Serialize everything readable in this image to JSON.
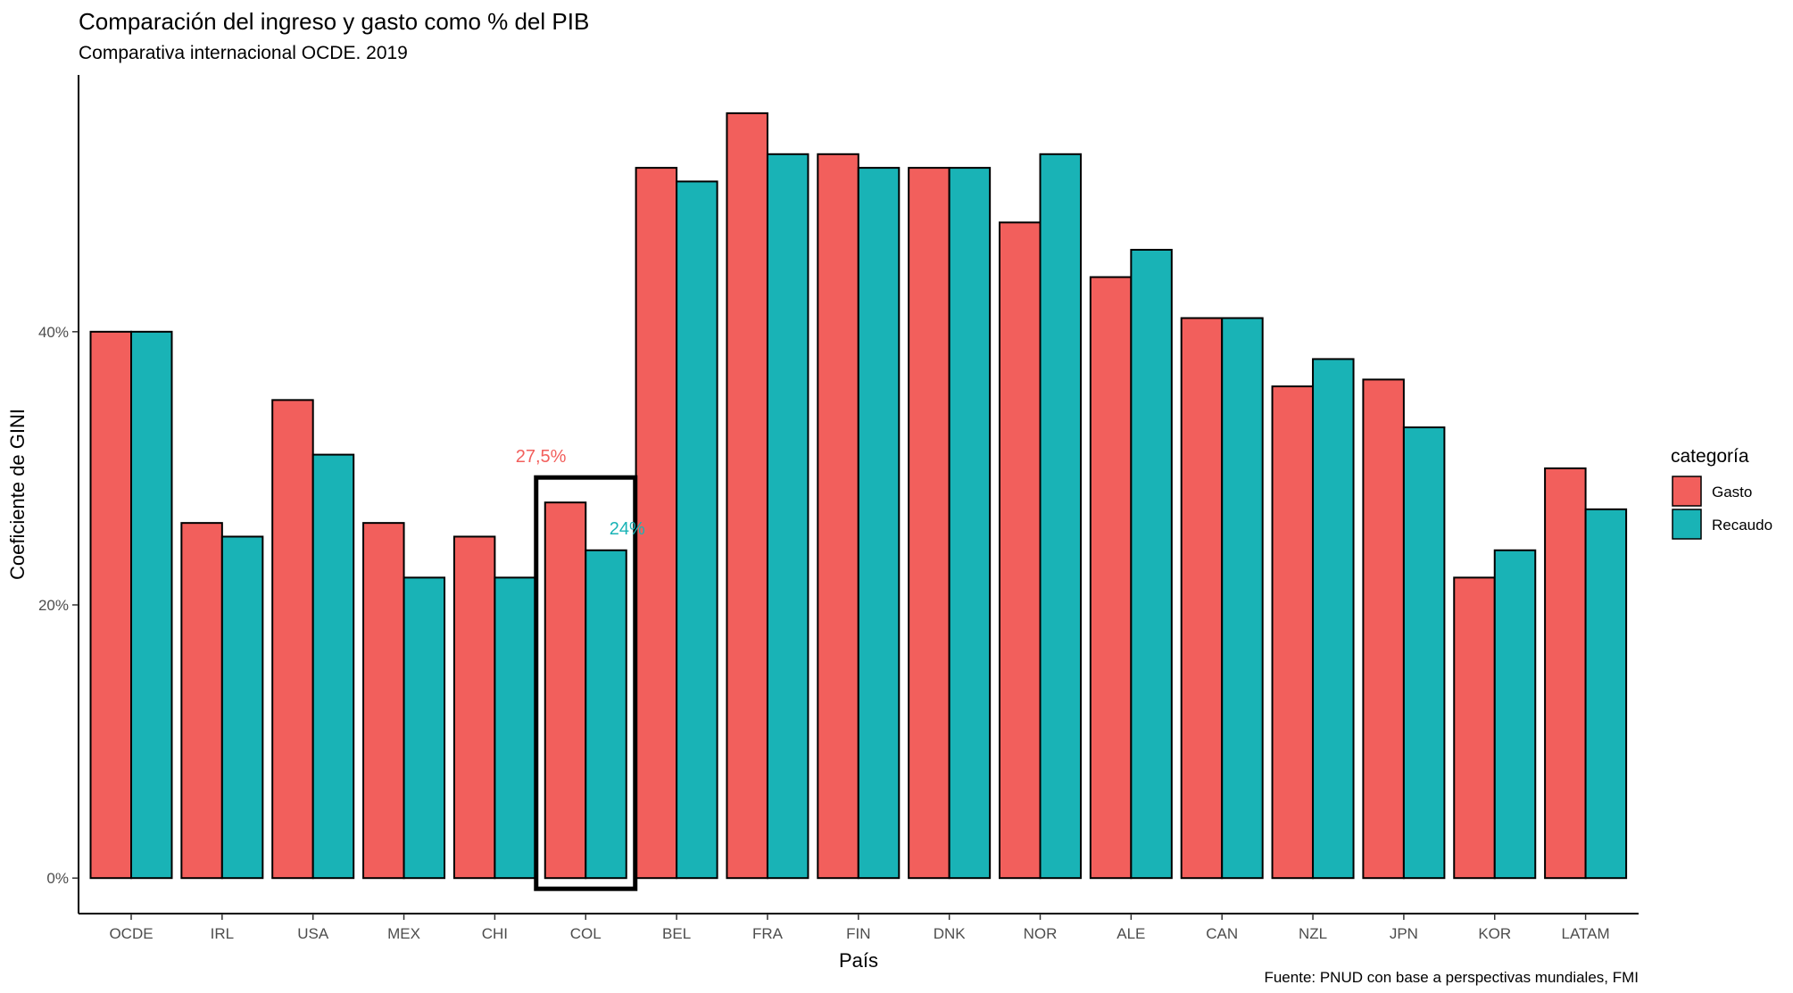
{
  "chart_data": {
    "type": "bar",
    "title": "Comparación del ingreso y gasto como % del PIB",
    "subtitle": "Comparativa internacional OCDE. 2019",
    "xlabel": "País",
    "ylabel": "Coeficiente de GINI",
    "caption": "Fuente: PNUD con base a perspectivas mundiales, FMI",
    "categories": [
      "OCDE",
      "IRL",
      "USA",
      "MEX",
      "CHI",
      "COL",
      "BEL",
      "FRA",
      "FIN",
      "DNK",
      "NOR",
      "ALE",
      "CAN",
      "NZL",
      "JPN",
      "KOR",
      "LATAM"
    ],
    "series": [
      {
        "name": "Gasto",
        "color": "#F25F5C",
        "values": [
          40,
          26,
          35,
          26,
          25,
          27.5,
          52,
          56,
          53,
          52,
          48,
          44,
          41,
          36,
          36.5,
          22,
          30
        ]
      },
      {
        "name": "Recaudo",
        "color": "#19B3B6",
        "values": [
          40,
          25,
          31,
          22,
          22,
          24,
          51,
          53,
          52,
          52,
          53,
          46,
          41,
          38,
          33,
          24,
          27
        ]
      }
    ],
    "ylim": [
      -2.6,
      58.8
    ],
    "yticks": [
      0,
      20,
      40
    ],
    "ytick_labels": [
      "0%",
      "20%",
      "40%"
    ],
    "legend": {
      "title": "categoría",
      "position": "right"
    },
    "grid": false,
    "highlight": {
      "category": "COL"
    },
    "annotations": [
      {
        "text": "27,5%",
        "category": "COL",
        "value": 27.5,
        "color": "#F25F5C"
      },
      {
        "text": "24%",
        "category": "COL",
        "value": 24,
        "color": "#19B3B6"
      }
    ]
  }
}
